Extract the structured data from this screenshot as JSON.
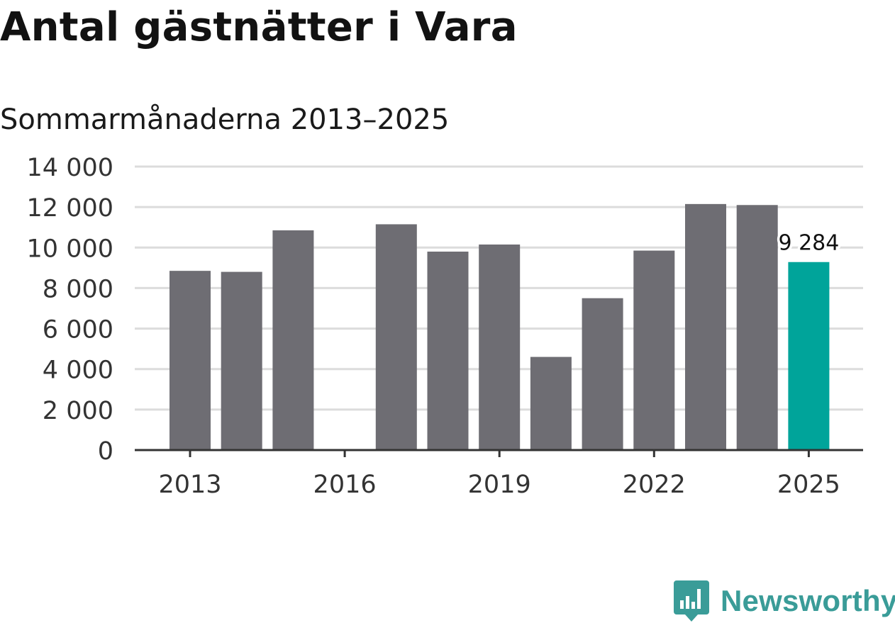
{
  "header": {
    "title": "Antal gästnätter i Vara",
    "subtitle": "Sommarmånaderna 2013–2025"
  },
  "brand": {
    "name": "Newsworthy",
    "color": "#3a9c98"
  },
  "chart_data": {
    "type": "bar",
    "title": "Antal gästnätter i Vara",
    "subtitle": "Sommarmånaderna 2013–2025",
    "xlabel": "",
    "ylabel": "",
    "categories": [
      "2013",
      "2014",
      "2015",
      "2016",
      "2017",
      "2018",
      "2019",
      "2020",
      "2021",
      "2022",
      "2023",
      "2024",
      "2025"
    ],
    "values": [
      8850,
      8800,
      10850,
      null,
      11150,
      9800,
      10150,
      4600,
      7500,
      9850,
      12150,
      12100,
      9284
    ],
    "x_tick_labels": [
      "2013",
      "2016",
      "2019",
      "2022",
      "2025"
    ],
    "y_tick_labels": [
      "0",
      "2 000",
      "4 000",
      "6 000",
      "8 000",
      "10 000",
      "12 000",
      "14 000"
    ],
    "ylim": [
      0,
      14000
    ],
    "y_ticks": [
      0,
      2000,
      4000,
      6000,
      8000,
      10000,
      12000,
      14000
    ],
    "grid": true,
    "bar_color": "#6e6d73",
    "highlight_color": "#00a49a",
    "highlight_category": "2025",
    "annotation": {
      "category": "2025",
      "label": "9 284"
    }
  }
}
